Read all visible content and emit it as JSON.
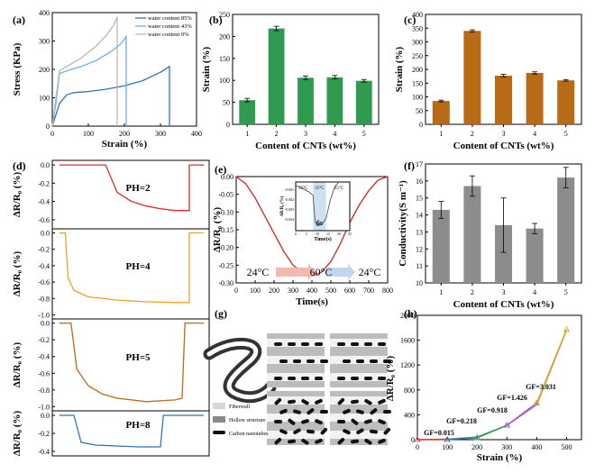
{
  "figure": {
    "panel_labels": [
      "(a)",
      "(b)",
      "(c)",
      "(d)",
      "(e)",
      "(f)",
      "(g)",
      "(h)"
    ]
  },
  "chart_data": [
    {
      "id": "a",
      "type": "line",
      "xlabel": "Strain (%)",
      "ylabel": "Stress (KPa)",
      "xlim": [
        0,
        400
      ],
      "ylim": [
        0,
        400
      ],
      "xticks": [
        0,
        100,
        200,
        300,
        400
      ],
      "yticks": [
        0,
        100,
        200,
        300,
        400
      ],
      "legend_position": "top-right",
      "series": [
        {
          "name": "water content 85%",
          "color": "#2f74b5",
          "x": [
            0,
            10,
            20,
            40,
            60,
            100,
            150,
            200,
            250,
            300,
            325,
            325
          ],
          "y": [
            0,
            40,
            80,
            110,
            118,
            122,
            130,
            142,
            160,
            190,
            210,
            0
          ]
        },
        {
          "name": "water content 43%",
          "color": "#6aaee0",
          "x": [
            0,
            10,
            20,
            40,
            80,
            120,
            160,
            190,
            205,
            205
          ],
          "y": [
            0,
            80,
            185,
            195,
            210,
            230,
            260,
            290,
            315,
            0
          ]
        },
        {
          "name": "water content 0%",
          "color": "#b8b8b8",
          "x": [
            0,
            10,
            20,
            40,
            80,
            120,
            150,
            170,
            180,
            180
          ],
          "y": [
            0,
            100,
            195,
            210,
            240,
            280,
            320,
            355,
            385,
            0
          ]
        }
      ]
    },
    {
      "id": "b",
      "type": "bar",
      "xlabel": "Content of CNTs (wt%)",
      "ylabel": "Strain (%)",
      "categories": [
        "1",
        "2",
        "3",
        "4",
        "5"
      ],
      "values": [
        55,
        218,
        106,
        107,
        99
      ],
      "errors": [
        4,
        5,
        4,
        4,
        3
      ],
      "ylim": [
        0,
        250
      ],
      "yticks": [
        0,
        50,
        100,
        150,
        200,
        250
      ],
      "color": "#2e9b4f"
    },
    {
      "id": "c",
      "type": "bar",
      "xlabel": "Content of CNTs (wt%)",
      "ylabel": "Strain (%)",
      "categories": [
        "1",
        "2",
        "3",
        "4",
        "5"
      ],
      "values": [
        85,
        340,
        177,
        187,
        160
      ],
      "errors": [
        3,
        4,
        5,
        4,
        3
      ],
      "ylim": [
        0,
        400
      ],
      "yticks": [
        0,
        50,
        100,
        150,
        200,
        250,
        300,
        350,
        400
      ],
      "color": "#b86a14"
    },
    {
      "id": "d",
      "type": "line",
      "ylabel": "ΔR/R₀ (%)",
      "subplots": [
        {
          "label": "PH=2",
          "color": "#d03030",
          "yticks": [
            0.0,
            -0.2,
            -0.4,
            -0.6
          ],
          "ylim": [
            -0.7,
            0.05
          ],
          "x": [
            0,
            0.2,
            0.32,
            0.4,
            0.5,
            0.6,
            0.7,
            0.8,
            0.9,
            0.9,
            1
          ],
          "y": [
            0,
            0,
            0,
            -0.3,
            -0.4,
            -0.45,
            -0.48,
            -0.5,
            -0.5,
            0,
            0
          ]
        },
        {
          "label": "PH=4",
          "color": "#f0a020",
          "yticks": [
            0.0,
            -0.2,
            -0.4,
            -0.6,
            -0.8,
            -1.0
          ],
          "ylim": [
            -1.05,
            0.05
          ],
          "x": [
            0,
            0.04,
            0.06,
            0.1,
            0.2,
            0.4,
            0.6,
            0.8,
            0.9,
            0.9,
            1
          ],
          "y": [
            0,
            0,
            -0.55,
            -0.7,
            -0.78,
            -0.82,
            -0.84,
            -0.85,
            -0.85,
            0,
            0
          ]
        },
        {
          "label": "PH=5",
          "color": "#b86a14",
          "yticks": [
            0.0,
            -0.2,
            -0.4,
            -0.6,
            -0.8,
            -1.0
          ],
          "ylim": [
            -1.05,
            0.05
          ],
          "x": [
            0,
            0.08,
            0.12,
            0.2,
            0.3,
            0.4,
            0.5,
            0.6,
            0.7,
            0.8,
            0.85,
            0.87,
            1
          ],
          "y": [
            0,
            0,
            -0.55,
            -0.75,
            -0.85,
            -0.9,
            -0.92,
            -0.94,
            -0.93,
            -0.92,
            -0.9,
            0,
            0
          ]
        },
        {
          "label": "PH=8",
          "color": "#2f74b5",
          "yticks": [
            0.0,
            -0.2,
            -0.4
          ],
          "ylim": [
            -0.45,
            0.05
          ],
          "x": [
            0,
            0.1,
            0.15,
            0.25,
            0.4,
            0.55,
            0.7,
            0.72,
            1
          ],
          "y": [
            0,
            0,
            -0.3,
            -0.33,
            -0.34,
            -0.35,
            -0.35,
            0,
            0
          ]
        }
      ]
    },
    {
      "id": "e",
      "type": "line",
      "xlabel": "Time(s)",
      "ylabel": "ΔR/R₀ (%)",
      "xlim": [
        0,
        800
      ],
      "ylim": [
        -0.3,
        0.0
      ],
      "xticks": [
        0,
        100,
        200,
        300,
        400,
        500,
        600,
        700,
        800
      ],
      "yticks": [
        0.0,
        -0.05,
        -0.1,
        -0.15,
        -0.2,
        -0.25,
        -0.3
      ],
      "color": "#d03030",
      "x": [
        0,
        50,
        100,
        150,
        200,
        250,
        300,
        350,
        400,
        450,
        500,
        550,
        600,
        650,
        700,
        750,
        800
      ],
      "y": [
        0,
        -0.02,
        -0.06,
        -0.11,
        -0.16,
        -0.21,
        -0.25,
        -0.27,
        -0.28,
        -0.27,
        -0.24,
        -0.19,
        -0.13,
        -0.08,
        -0.04,
        -0.01,
        0
      ],
      "temperature_annotations": [
        "24°C",
        "60°C",
        "24°C"
      ],
      "inset": {
        "xlabel": "Time(s)",
        "ylabel": "ΔR/R₀ (%)",
        "xlim": [
          0,
          25
        ],
        "xticks": [
          0,
          5,
          10,
          15,
          20,
          25
        ],
        "ytick_labels": [
          "-0.001",
          "-0.002",
          "-0.003",
          "-0.004"
        ],
        "temps": [
          "25°C",
          "31°C",
          "25°C"
        ],
        "duration_label": "6s",
        "x": [
          0,
          3,
          6,
          8,
          9,
          10,
          12,
          14,
          16,
          18,
          20
        ],
        "y": [
          -0.0008,
          -0.001,
          -0.0013,
          -0.0016,
          -0.0038,
          -0.0041,
          -0.004,
          -0.0035,
          -0.002,
          -0.0009,
          -0.0005
        ]
      }
    },
    {
      "id": "f",
      "type": "bar",
      "xlabel": "Content of CNTs (wt%)",
      "ylabel": "Conductivity(S m⁻¹)",
      "categories": [
        "1",
        "2",
        "3",
        "4",
        "5"
      ],
      "values": [
        14.3,
        15.7,
        13.4,
        13.2,
        16.2
      ],
      "errors": [
        0.5,
        0.6,
        1.6,
        0.3,
        0.6
      ],
      "ylim": [
        10,
        17
      ],
      "yticks": [
        10,
        11,
        12,
        13,
        14,
        15,
        16,
        17
      ],
      "color": "#8c8c8c"
    },
    {
      "id": "h",
      "type": "line",
      "xlabel": "Strain (%)",
      "ylabel": "ΔR/R₀ (%)",
      "xlim": [
        0,
        550
      ],
      "ylim": [
        0,
        2000
      ],
      "xticks": [
        0,
        100,
        200,
        300,
        400,
        500
      ],
      "yticks": [
        0,
        400,
        800,
        1200,
        1600,
        2000
      ],
      "measured": {
        "color": "#909090",
        "x": [
          0,
          100,
          200,
          300,
          400,
          500
        ],
        "y": [
          0,
          10,
          45,
          230,
          560,
          1760
        ]
      },
      "fits": [
        {
          "label": "GF=0.015",
          "color": "#e03030",
          "x": [
            0,
            100
          ],
          "y": [
            0,
            2
          ]
        },
        {
          "label": "GF=0.218",
          "color": "#2f74b5",
          "x": [
            100,
            200
          ],
          "y": [
            2,
            30
          ]
        },
        {
          "label": "GF=0.918",
          "color": "#2e9b4f",
          "x": [
            200,
            300
          ],
          "y": [
            30,
            230
          ]
        },
        {
          "label": "GF=1.426",
          "color": "#a050d0",
          "x": [
            300,
            400
          ],
          "y": [
            230,
            590
          ]
        },
        {
          "label": "GF=3.031",
          "color": "#e8a020",
          "x": [
            400,
            500
          ],
          "y": [
            590,
            1770
          ]
        }
      ]
    }
  ],
  "schematic_g": {
    "legend": [
      "Fiberwall",
      "Hollow structure",
      "Carbon nanotubes"
    ]
  }
}
